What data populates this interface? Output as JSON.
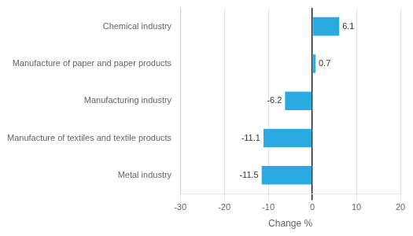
{
  "chart_data": {
    "type": "bar",
    "orientation": "horizontal",
    "categories": [
      "Chemical industry",
      "Manufacture of paper and paper products",
      "Manufacturing industry",
      "Manufacture of textiles and textile products",
      "Metal industry"
    ],
    "values": [
      6.1,
      0.7,
      -6.2,
      -11.1,
      -11.5
    ],
    "color": "#29ABE2",
    "xlabel": "Change %",
    "xlim": [
      -30,
      20
    ],
    "xticks": [
      -30,
      -20,
      -10,
      0,
      10,
      20
    ],
    "grid": true,
    "data_labels": true
  }
}
